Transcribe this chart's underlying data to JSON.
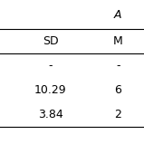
{
  "figsize": [
    1.59,
    1.59
  ],
  "dpi": 100,
  "col_header_row1": [
    "",
    "A"
  ],
  "col_header_row2": [
    "SD",
    "M"
  ],
  "rows": [
    [
      "-",
      "-"
    ],
    [
      "10.29",
      "6"
    ],
    [
      "3.84",
      "2"
    ]
  ],
  "line_color": "black",
  "font_size": 9,
  "bg_color": "white"
}
